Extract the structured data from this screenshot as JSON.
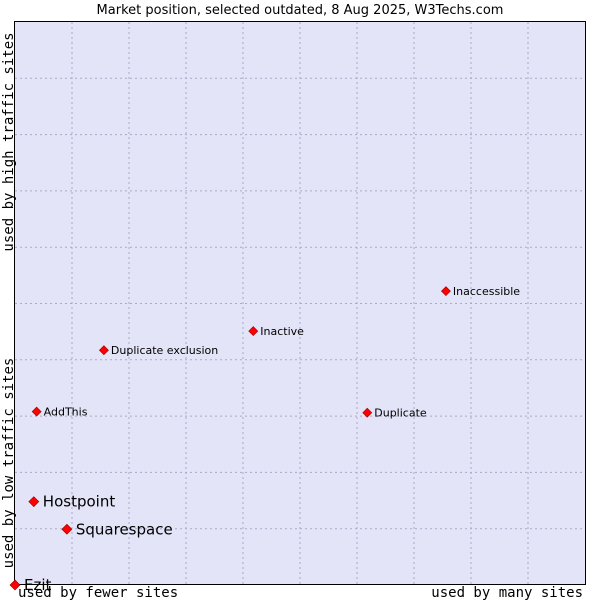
{
  "chart_data": {
    "type": "scatter",
    "title": "Market position, selected outdated, 8 Aug 2025, W3Techs.com",
    "xlabel_left": "used by fewer sites",
    "xlabel_right": "used by many sites",
    "ylabel_low": "used by low traffic sites",
    "ylabel_high": "used by high traffic sites",
    "xlim": [
      0,
      100
    ],
    "ylim": [
      0,
      100
    ],
    "grid": true,
    "legend": "none",
    "colors": {
      "plot_background": "#e4e4f8",
      "grid": "#a9a9c8",
      "marker": "#ff0000",
      "marker_edge": "#990000"
    },
    "points": [
      {
        "name": "Inaccessible",
        "x": 75.6,
        "y": 52.2,
        "size": "small"
      },
      {
        "name": "Inactive",
        "x": 41.8,
        "y": 45.1,
        "size": "small"
      },
      {
        "name": "Duplicate exclusion",
        "x": 15.6,
        "y": 41.7,
        "size": "small"
      },
      {
        "name": "AddThis",
        "x": 3.8,
        "y": 30.8,
        "size": "small"
      },
      {
        "name": "Duplicate",
        "x": 61.8,
        "y": 30.6,
        "size": "small"
      },
      {
        "name": "Hostpoint",
        "x": 3.3,
        "y": 14.8,
        "size": "large"
      },
      {
        "name": "Squarespace",
        "x": 9.1,
        "y": 9.9,
        "size": "large"
      },
      {
        "name": "Ezit",
        "x": 0.0,
        "y": 0.0,
        "size": "large"
      }
    ]
  }
}
